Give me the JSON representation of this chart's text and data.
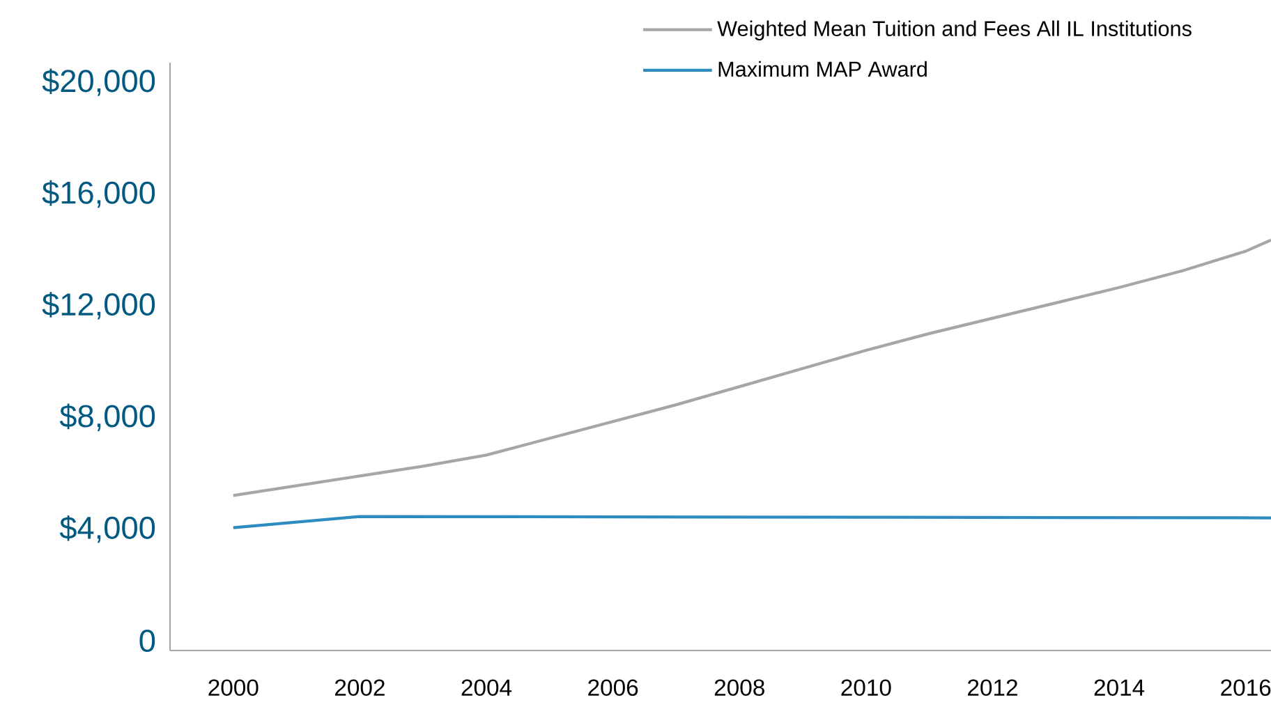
{
  "chart_data": {
    "type": "line",
    "x": [
      2000,
      2001,
      2002,
      2003,
      2004,
      2005,
      2006,
      2007,
      2008,
      2009,
      2010,
      2011,
      2012,
      2013,
      2014,
      2015,
      2016,
      2016.4
    ],
    "series": [
      {
        "name": "Weighted Mean Tuition and Fees All IL Institutions",
        "color": "#a6a6a6",
        "values": [
          5200,
          5550,
          5900,
          6250,
          6650,
          7250,
          7850,
          8450,
          9100,
          9750,
          10400,
          11000,
          11550,
          12100,
          12650,
          13250,
          13950,
          14350
        ]
      },
      {
        "name": "Maximum MAP Award",
        "color": "#2e8bc0",
        "x": [
          2000,
          2002,
          2016.4
        ],
        "values": [
          4050,
          4450,
          4400
        ]
      }
    ],
    "xlim": [
      1999,
      2016.4
    ],
    "ylim": [
      -350,
      20700
    ],
    "xticks": [
      2000,
      2002,
      2004,
      2006,
      2008,
      2010,
      2012,
      2014,
      2016
    ],
    "yticks": [
      0,
      {
        "value": 4000,
        "label": "$4,000"
      },
      {
        "value": 8000,
        "label": "$8,000"
      },
      {
        "value": 12000,
        "label": "$12,000"
      },
      {
        "value": 16000,
        "label": "$16,000"
      },
      {
        "value": 20000,
        "label": "$20,000"
      }
    ],
    "grid": false,
    "legend": "top right",
    "line_style": "solid",
    "marker": "none"
  }
}
